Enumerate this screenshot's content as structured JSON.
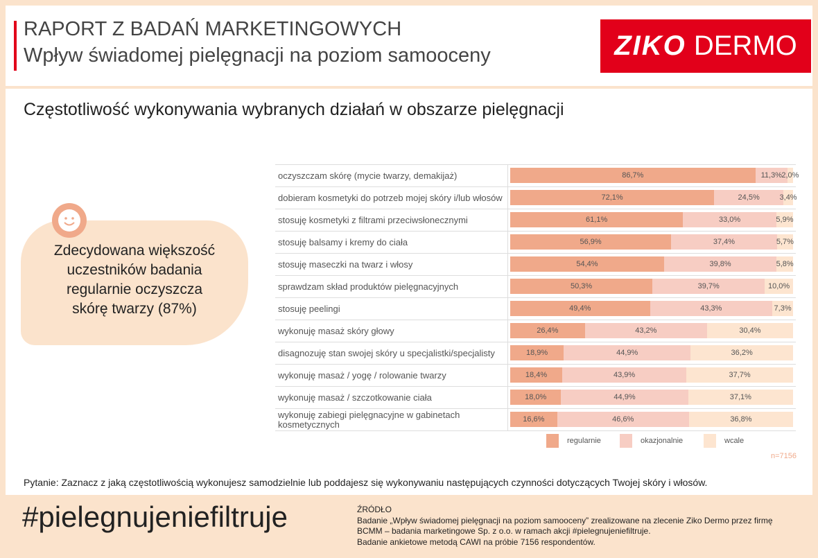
{
  "header": {
    "title": "RAPORT Z BADAŃ MARKETINGOWYCH",
    "subtitle": "Wpływ świadomej pielęgnacji na poziom samooceny",
    "logo_bold": "ZIKO",
    "logo_light": "DERMO"
  },
  "callout": {
    "lines": [
      "Zdecydowana większość",
      "uczestników badania",
      "regularnie oczyszcza",
      "skórę twarzy (87%)"
    ]
  },
  "chart_data": {
    "type": "stacked-bar-horizontal",
    "title": "Częstotliwość wykonywania wybranych działań w obszarze pielęgnacji",
    "categories": [
      "oczyszczam skórę (mycie twarzy, demakijaż)",
      "dobieram kosmetyki do potrzeb mojej skóry i/lub włosów",
      "stosuję kosmetyki z filtrami przeciwsłonecznymi",
      "stosuję balsamy i kremy do ciała",
      "stosuję maseczki na twarz i włosy",
      "sprawdzam skład produktów pielęgnacyjnych",
      "stosuję peelingi",
      "wykonuję masaż skóry głowy",
      "disagnozuję stan swojej skóry u specjalistki/specjalisty",
      "wykonuję masaż / yogę / rolowanie twarzy",
      "wykonuję masaż / szczotkowanie ciała",
      "wykonuję zabiegi pielęgnacyjne w gabinetach kosmetycznych"
    ],
    "xlim": [
      0,
      100
    ],
    "series": [
      {
        "name": "regularnie",
        "color": "#f0a98a",
        "values": [
          86.7,
          72.1,
          61.1,
          56.9,
          54.4,
          50.3,
          49.4,
          26.4,
          18.9,
          18.4,
          18.0,
          16.6
        ],
        "value_labels": [
          "86,7%",
          "72,1%",
          "61,1%",
          "56,9%",
          "54,4%",
          "50,3%",
          "49,4%",
          "26,4%",
          "18,9%",
          "18,4%",
          "18,0%",
          "16,6%"
        ]
      },
      {
        "name": "okazjonalnie",
        "color": "#f7cdc3",
        "values": [
          11.3,
          24.5,
          33.0,
          37.4,
          39.8,
          39.7,
          43.3,
          43.2,
          44.9,
          43.9,
          44.9,
          46.6
        ],
        "value_labels": [
          "11,3%",
          "24,5%",
          "33,0%",
          "37,4%",
          "39,8%",
          "39,7%",
          "43,3%",
          "43,2%",
          "44,9%",
          "43,9%",
          "44,9%",
          "46,6%"
        ]
      },
      {
        "name": "wcale",
        "color": "#fde5d0",
        "values": [
          2.0,
          3.4,
          5.9,
          5.7,
          5.8,
          10.0,
          7.3,
          30.4,
          36.2,
          37.7,
          37.1,
          36.8
        ],
        "value_labels": [
          "2,0%",
          "3,4%",
          "5,9%",
          "5,7%",
          "5,8%",
          "10,0%",
          "7,3%",
          "30,4%",
          "36,2%",
          "37,7%",
          "37,1%",
          "36,8%"
        ]
      }
    ],
    "note": "n=7156"
  },
  "question": "Pytanie: Zaznacz z jaką częstotliwością wykonujesz samodzielnie lub poddajesz się wykonywaniu następujących czynności dotyczących Twojej skóry i włosów.",
  "footer": {
    "hashtag": "#pielegnujeniefiltruje",
    "source_title": "ŹRÓDŁO",
    "source_lines": [
      "Badanie „Wpływ świadomej pielęgnacji na poziom samooceny” zrealizowane na zlecenie Ziko Dermo przez firmę",
      "BCMM – badania marketingowe Sp. z o.o. w ramach akcji #pielegnujeniefiltruje.",
      "Badanie ankietowe metodą CAWI na próbie 7156 respondentów."
    ]
  }
}
